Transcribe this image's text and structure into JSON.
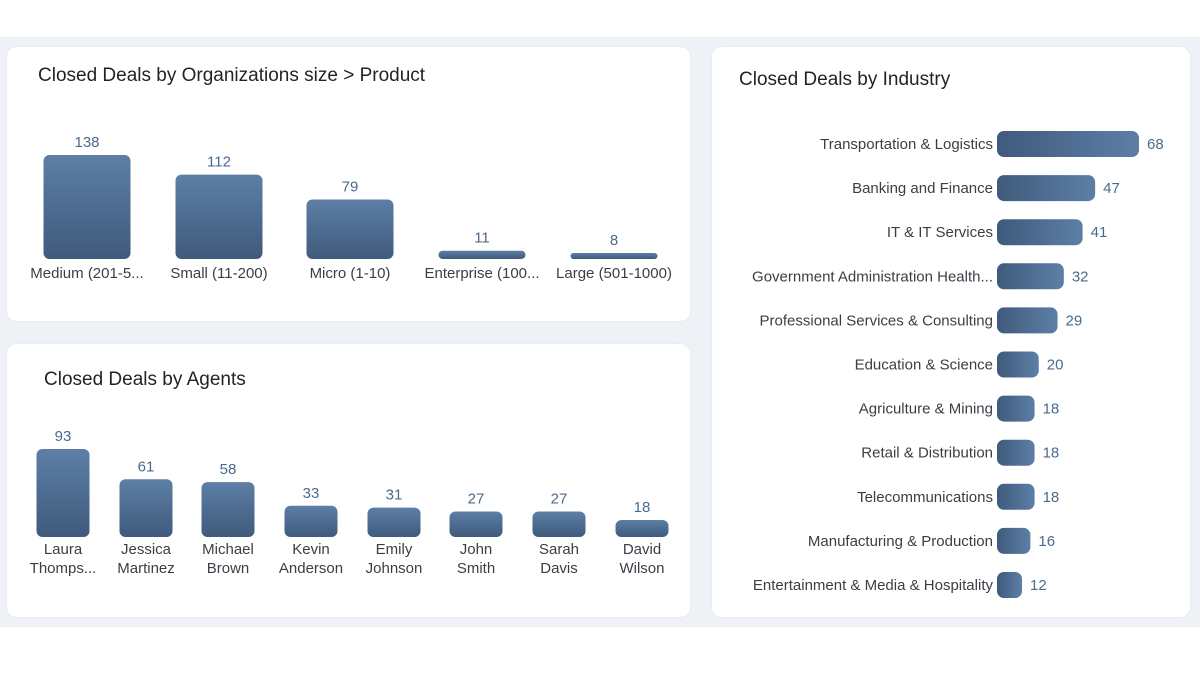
{
  "colors": {
    "bar_top": "#5d7fa6",
    "bar_bottom": "#3f5a7c",
    "value_text": "#4a6a8f"
  },
  "charts": {
    "org_size": {
      "title": "Closed Deals by Organizations size > Product",
      "chart_data": {
        "type": "bar",
        "categories": [
          "Medium (201-5...",
          "Small (11-200)",
          "Micro (1-10)",
          "Enterprise (100...",
          "Large (501-1000)"
        ],
        "values": [
          138,
          112,
          79,
          11,
          8
        ],
        "title": "Closed Deals by Organizations size > Product",
        "xlabel": "",
        "ylabel": "",
        "grid": false
      }
    },
    "agents": {
      "title": "Closed Deals by Agents",
      "chart_data": {
        "type": "bar",
        "categories": [
          [
            "Laura",
            "Thomps..."
          ],
          [
            "Jessica",
            "Martinez"
          ],
          [
            "Michael",
            "Brown"
          ],
          [
            "Kevin",
            "Anderson"
          ],
          [
            "Emily",
            "Johnson"
          ],
          [
            "John",
            "Smith"
          ],
          [
            "Sarah",
            "Davis"
          ],
          [
            "David",
            "Wilson"
          ]
        ],
        "values": [
          93,
          61,
          58,
          33,
          31,
          27,
          27,
          18
        ],
        "title": "Closed Deals by Agents",
        "xlabel": "",
        "ylabel": "",
        "grid": false
      }
    },
    "industry": {
      "title": "Closed Deals by Industry",
      "chart_data": {
        "type": "bar",
        "orientation": "horizontal",
        "categories": [
          "Transportation & Logistics",
          "Banking and Finance",
          "IT & IT Services",
          "Government Administration Health...",
          "Professional Services & Consulting",
          "Education & Science",
          "Agriculture & Mining",
          "Retail & Distribution",
          "Telecommunications",
          "Manufacturing & Production",
          "Entertainment & Media & Hospitality"
        ],
        "values": [
          68,
          47,
          41,
          32,
          29,
          20,
          18,
          18,
          18,
          16,
          12
        ],
        "title": "Closed Deals by Industry",
        "xlabel": "",
        "ylabel": "",
        "grid": false
      }
    }
  }
}
